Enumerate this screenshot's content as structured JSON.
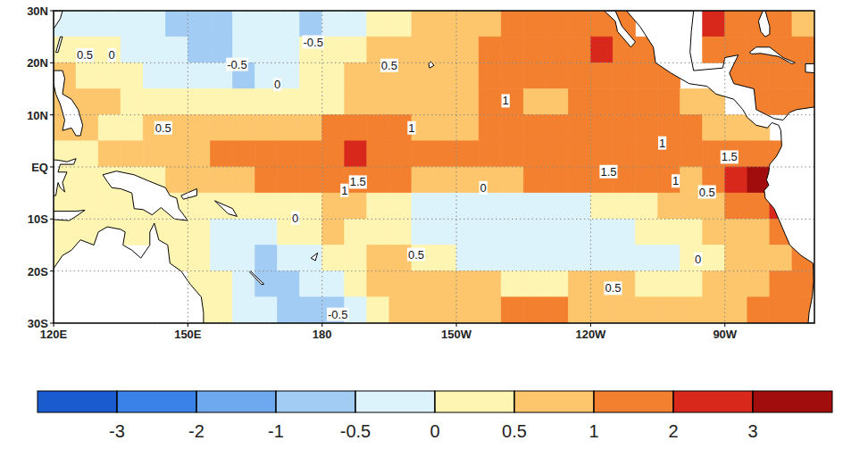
{
  "chart_data": {
    "type": "heatmap",
    "xlim": [
      120,
      290
    ],
    "ylim": [
      -30,
      30
    ],
    "xticks": [
      {
        "value": 120,
        "label": "120E"
      },
      {
        "value": 150,
        "label": "150E"
      },
      180,
      {
        "value": 210,
        "label": "150W"
      },
      {
        "value": 240,
        "label": "120W"
      },
      {
        "value": 270,
        "label": "90W"
      }
    ],
    "yticks": [
      {
        "value": -30,
        "label": "30S"
      },
      {
        "value": -20,
        "label": "20S"
      },
      {
        "value": -10,
        "label": "10S"
      },
      {
        "value": 0,
        "label": "EQ"
      },
      {
        "value": 10,
        "label": "10N"
      },
      {
        "value": 20,
        "label": "20N"
      },
      {
        "value": 30,
        "label": "30N"
      }
    ],
    "grid": true,
    "x": [
      122.5,
      127.5,
      132.5,
      137.5,
      142.5,
      147.5,
      152.5,
      157.5,
      162.5,
      167.5,
      172.5,
      177.5,
      182.5,
      187.5,
      192.5,
      197.5,
      202.5,
      207.5,
      212.5,
      217.5,
      222.5,
      227.5,
      232.5,
      237.5,
      242.5,
      247.5,
      252.5,
      257.5,
      262.5,
      267.5,
      272.5,
      277.5,
      282.5,
      287.5
    ],
    "y": [
      27.5,
      22.5,
      17.5,
      12.5,
      7.5,
      2.5,
      -2.5,
      -7.5,
      -12.5,
      -17.5,
      -22.5,
      -27.5
    ],
    "cells": [
      [
        -0.2,
        -0.2,
        -0.3,
        -0.3,
        -0.4,
        -0.6,
        -0.8,
        -0.6,
        -0.3,
        -0.2,
        -0.3,
        -0.6,
        -0.4,
        -0.1,
        0.3,
        0.4,
        0.6,
        0.7,
        0.8,
        0.9,
        1.1,
        1.2,
        1.3,
        1.3,
        1.2,
        1.1,
        null,
        null,
        null,
        2.2,
        1.6,
        1.2,
        1.0,
        0.9
      ],
      [
        0.2,
        0.4,
        0.2,
        -0.1,
        -0.3,
        -0.4,
        -0.6,
        -0.7,
        -0.5,
        -0.3,
        -0.1,
        0.0,
        0.2,
        0.4,
        0.5,
        0.6,
        0.7,
        0.8,
        0.9,
        1.1,
        1.2,
        1.1,
        1.3,
        1.8,
        2.1,
        1.2,
        1.0,
        null,
        null,
        1.2,
        1.0,
        1.1,
        1.2,
        1.2
      ],
      [
        0.5,
        0.4,
        0.2,
        0.0,
        -0.1,
        -0.1,
        -0.2,
        -0.3,
        -0.6,
        -0.3,
        -0.1,
        0.1,
        0.3,
        0.5,
        0.6,
        0.6,
        0.7,
        0.8,
        0.9,
        1.0,
        1.1,
        1.2,
        1.3,
        1.5,
        1.3,
        1.1,
        1.1,
        1.2,
        null,
        null,
        1.1,
        1.2,
        1.3,
        1.3
      ],
      [
        0.6,
        0.6,
        0.5,
        0.4,
        0.3,
        0.2,
        0.1,
        0.0,
        0.0,
        0.1,
        0.2,
        0.3,
        0.4,
        0.5,
        0.6,
        0.7,
        0.8,
        0.8,
        0.9,
        1.0,
        1.0,
        0.9,
        0.9,
        1.0,
        1.1,
        1.2,
        1.1,
        1.0,
        0.9,
        0.9,
        null,
        1.1,
        1.2,
        1.1
      ],
      [
        0.6,
        0.5,
        0.4,
        0.4,
        0.5,
        0.5,
        0.6,
        0.6,
        0.7,
        0.8,
        0.9,
        0.9,
        1.0,
        1.0,
        1.0,
        1.0,
        0.9,
        0.9,
        0.9,
        1.0,
        1.1,
        1.2,
        1.1,
        1.0,
        1.0,
        1.1,
        1.2,
        1.1,
        1.0,
        0.9,
        0.9,
        0.9,
        null,
        null
      ],
      [
        0.3,
        0.4,
        0.5,
        0.6,
        0.7,
        0.8,
        0.9,
        1.1,
        1.4,
        1.6,
        1.7,
        1.6,
        1.8,
        2.1,
        1.5,
        1.5,
        1.5,
        1.3,
        1.3,
        1.4,
        1.4,
        1.3,
        1.3,
        1.4,
        1.5,
        1.4,
        1.3,
        1.4,
        1.5,
        1.6,
        1.6,
        1.5,
        1.3,
        null
      ],
      [
        0.3,
        0.4,
        0.3,
        0.3,
        0.4,
        0.5,
        0.5,
        0.7,
        0.9,
        1.1,
        1.3,
        1.5,
        1.7,
        1.7,
        1.3,
        1.0,
        0.8,
        0.7,
        0.6,
        0.7,
        0.9,
        1.1,
        1.3,
        1.5,
        1.5,
        1.4,
        1.3,
        1.1,
        0.9,
        1.0,
        2.2,
        3.4,
        null,
        null
      ],
      [
        0.3,
        0.3,
        0.3,
        0.3,
        0.3,
        0.3,
        0.2,
        0.2,
        0.2,
        0.3,
        0.2,
        0.2,
        0.6,
        0.5,
        0.3,
        0.0,
        -0.1,
        -0.2,
        -0.2,
        -0.2,
        -0.2,
        -0.2,
        -0.2,
        -0.1,
        0.0,
        0.1,
        0.3,
        0.6,
        0.5,
        0.6,
        1.0,
        1.6,
        2.0,
        null
      ],
      [
        0.3,
        0.4,
        0.4,
        0.4,
        0.4,
        0.3,
        0.1,
        -0.1,
        -0.2,
        -0.3,
        0.0,
        0.3,
        0.5,
        0.4,
        0.3,
        0.1,
        -0.1,
        -0.3,
        -0.3,
        -0.4,
        -0.4,
        -0.3,
        -0.3,
        -0.3,
        -0.2,
        -0.1,
        0.0,
        0.2,
        0.4,
        0.5,
        0.6,
        0.9,
        1.2,
        null
      ],
      [
        0.4,
        null,
        null,
        null,
        null,
        0.3,
        0.0,
        -0.2,
        -0.5,
        -0.6,
        -0.4,
        -0.3,
        0.1,
        0.4,
        0.5,
        0.5,
        0.3,
        0.0,
        -0.2,
        -0.3,
        -0.3,
        -0.3,
        -0.3,
        -0.2,
        -0.2,
        -0.1,
        -0.1,
        -0.1,
        0.0,
        0.3,
        0.5,
        0.6,
        0.8,
        1.2
      ],
      [
        null,
        null,
        null,
        null,
        null,
        null,
        0.3,
        0.1,
        -0.4,
        -0.6,
        -0.6,
        -0.5,
        -0.2,
        0.2,
        0.5,
        0.6,
        0.7,
        0.6,
        0.6,
        0.5,
        0.4,
        0.3,
        0.4,
        0.5,
        0.6,
        0.6,
        0.4,
        0.3,
        0.4,
        0.6,
        0.7,
        0.8,
        1.0,
        1.3
      ],
      [
        null,
        null,
        null,
        null,
        null,
        null,
        0.4,
        0.1,
        -0.3,
        -0.5,
        -0.7,
        -0.8,
        -0.6,
        -0.1,
        0.3,
        0.5,
        0.6,
        0.5,
        0.6,
        0.8,
        1.0,
        1.1,
        1.0,
        0.9,
        0.7,
        0.6,
        0.5,
        0.6,
        0.7,
        0.8,
        0.9,
        1.1,
        1.4,
        1.2
      ]
    ],
    "colorbar": {
      "ticks": [
        -3,
        -2,
        -1,
        -0.5,
        0,
        0.5,
        1,
        2,
        3
      ],
      "colors": [
        "#1b5bd0",
        "#3b82e8",
        "#6ea8ee",
        "#a2ccf3",
        "#dcf3fb",
        "#fff5b2",
        "#fdc66c",
        "#f2802f",
        "#d8281b",
        "#a10d0c"
      ]
    },
    "annotations": [
      {
        "text": "0.5",
        "x": 127,
        "y": 21.5
      },
      {
        "text": "0",
        "x": 133,
        "y": 21.5
      },
      {
        "text": "-0.5",
        "x": 161,
        "y": 19.7
      },
      {
        "text": "-0.5",
        "x": 178,
        "y": 24
      },
      {
        "text": "0",
        "x": 170,
        "y": 15.8
      },
      {
        "text": "0.5",
        "x": 195,
        "y": 19.5
      },
      {
        "text": "0.5",
        "x": 144.5,
        "y": 7.5
      },
      {
        "text": "1",
        "x": 200,
        "y": 7.5
      },
      {
        "text": "1",
        "x": 221,
        "y": 12.7
      },
      {
        "text": "1",
        "x": 256,
        "y": 4.6
      },
      {
        "text": "1.5",
        "x": 271,
        "y": 1.9
      },
      {
        "text": "1.5",
        "x": 244,
        "y": -0.9
      },
      {
        "text": "1",
        "x": 259,
        "y": -2.7
      },
      {
        "text": "0.5",
        "x": 266,
        "y": -4.8
      },
      {
        "text": "1.5",
        "x": 188,
        "y": -2.9
      },
      {
        "text": "1",
        "x": 185,
        "y": -4.5
      },
      {
        "text": "0",
        "x": 216,
        "y": -4
      },
      {
        "text": "0",
        "x": 174,
        "y": -9.8
      },
      {
        "text": "0.5",
        "x": 201,
        "y": -16.8
      },
      {
        "text": "0",
        "x": 264,
        "y": -17.7
      },
      {
        "text": "0.5",
        "x": 245,
        "y": -23.3
      },
      {
        "text": "-0.5",
        "x": 183.5,
        "y": -28.3
      }
    ]
  }
}
